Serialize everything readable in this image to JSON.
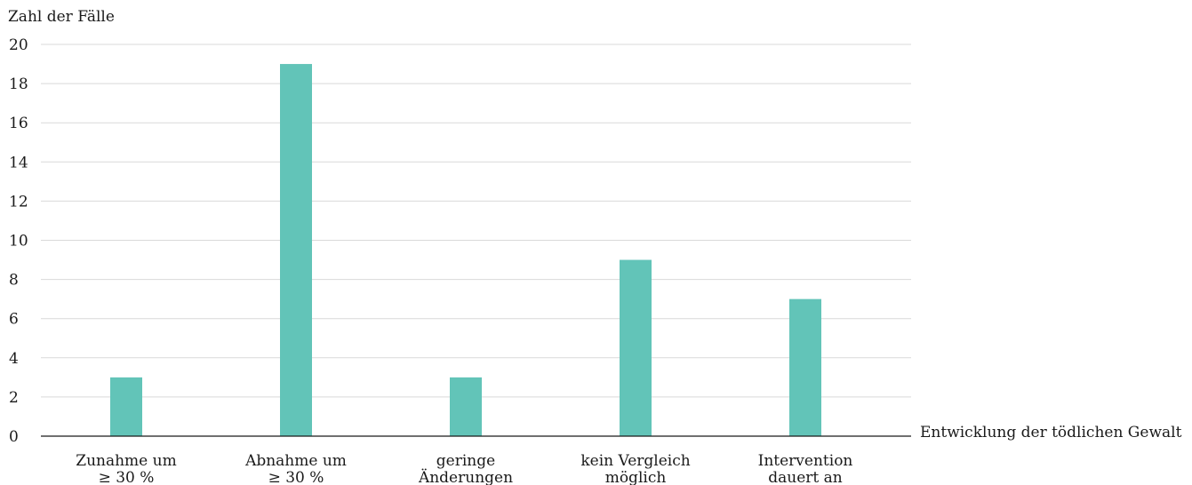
{
  "chart_data": {
    "type": "bar",
    "title": "",
    "ylabel": "Zahl der Fälle",
    "xlabel": "Entwicklung der tödlichen Gewalt",
    "ylim": [
      0,
      20
    ],
    "yticks": [
      0,
      2,
      4,
      6,
      8,
      10,
      12,
      14,
      16,
      18,
      20
    ],
    "grid": true,
    "legend": "none",
    "bar_color": "#62c4b8",
    "grid_color": "#d9d9d9",
    "axis_color": "#1a1a1a",
    "categories": [
      [
        "Zunahme um",
        "≥ 30 %"
      ],
      [
        "Abnahme um",
        "≥ 30 %"
      ],
      [
        "geringe",
        "Änderungen"
      ],
      [
        "kein Vergleich",
        "möglich"
      ],
      [
        "Intervention",
        "dauert an"
      ]
    ],
    "values": [
      3,
      19,
      3,
      9,
      7
    ]
  }
}
